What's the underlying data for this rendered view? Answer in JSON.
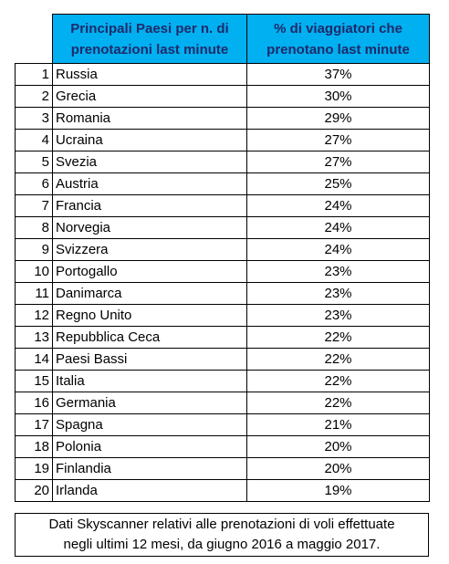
{
  "table": {
    "headers": {
      "country_line1": "Principali Paesi per n. di",
      "country_line2": "prenotazioni last minute",
      "pct_line1": "% di viaggiatori che",
      "pct_line2": "prenotano last minute"
    },
    "rows": [
      {
        "rank": "1",
        "country": "Russia",
        "pct": "37%"
      },
      {
        "rank": "2",
        "country": "Grecia",
        "pct": "30%"
      },
      {
        "rank": "3",
        "country": "Romania",
        "pct": "29%"
      },
      {
        "rank": "4",
        "country": "Ucraina",
        "pct": "27%"
      },
      {
        "rank": "5",
        "country": "Svezia",
        "pct": "27%"
      },
      {
        "rank": "6",
        "country": "Austria",
        "pct": "25%"
      },
      {
        "rank": "7",
        "country": "Francia",
        "pct": "24%"
      },
      {
        "rank": "8",
        "country": "Norvegia",
        "pct": "24%"
      },
      {
        "rank": "9",
        "country": "Svizzera",
        "pct": "24%"
      },
      {
        "rank": "10",
        "country": "Portogallo",
        "pct": "23%"
      },
      {
        "rank": "11",
        "country": "Danimarca",
        "pct": "23%"
      },
      {
        "rank": "12",
        "country": "Regno Unito",
        "pct": "23%"
      },
      {
        "rank": "13",
        "country": "Repubblica Ceca",
        "pct": "22%"
      },
      {
        "rank": "14",
        "country": "Paesi Bassi",
        "pct": "22%"
      },
      {
        "rank": "15",
        "country": "Italia",
        "pct": "22%"
      },
      {
        "rank": "16",
        "country": "Germania",
        "pct": "22%"
      },
      {
        "rank": "17",
        "country": "Spagna",
        "pct": "21%"
      },
      {
        "rank": "18",
        "country": "Polonia",
        "pct": "20%"
      },
      {
        "rank": "19",
        "country": "Finlandia",
        "pct": "20%"
      },
      {
        "rank": "20",
        "country": "Irlanda",
        "pct": "19%"
      }
    ]
  },
  "footnote": {
    "line1": "Dati Skyscanner relativi alle prenotazioni di voli effettuate",
    "line2": "negli ultimi 12 mesi, da giugno 2016 a maggio 2017."
  },
  "colors": {
    "header_bg": "#00b0f0",
    "header_text": "#1f2a6b"
  }
}
